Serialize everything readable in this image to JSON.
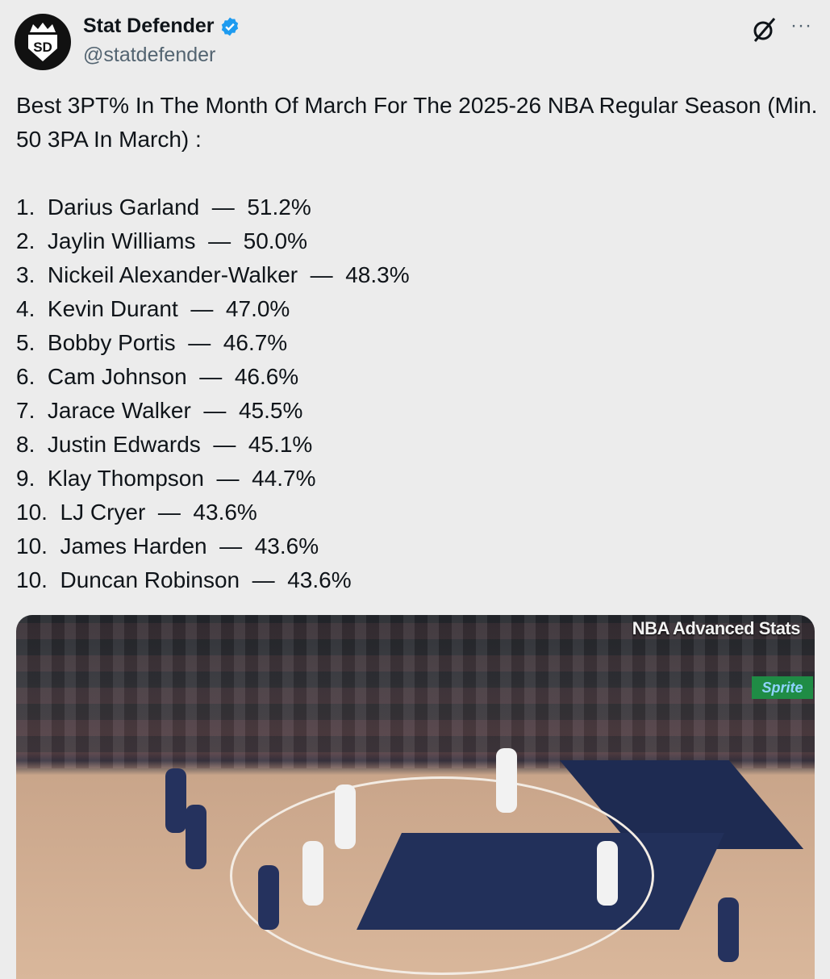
{
  "author": {
    "name": "Stat Defender",
    "handle": "@statdefender",
    "avatar_icon": "sd-crown-logo",
    "avatar_text": "SD",
    "verified": true,
    "verified_color": "#1d9bf0"
  },
  "actions": {
    "grok_icon": "grok-icon",
    "more_icon": "more-icon",
    "more_label": "···"
  },
  "tweet": {
    "headline": "Best 3PT% In The Month Of March For The 2025-26 NBA Regular Season (Min. 50 3PA In March) :",
    "rankings": [
      {
        "rank": "1.",
        "player": "Darius Garland",
        "pct": "51.2%"
      },
      {
        "rank": "2.",
        "player": "Jaylin Williams",
        "pct": "50.0%"
      },
      {
        "rank": "3.",
        "player": "Nickeil Alexander-Walker",
        "pct": "48.3%"
      },
      {
        "rank": "4.",
        "player": "Kevin Durant",
        "pct": "47.0%"
      },
      {
        "rank": "5.",
        "player": "Bobby Portis",
        "pct": "46.7%"
      },
      {
        "rank": "6.",
        "player": "Cam Johnson",
        "pct": "46.6%"
      },
      {
        "rank": "7.",
        "player": "Jarace Walker",
        "pct": "45.5%"
      },
      {
        "rank": "8.",
        "player": "Justin Edwards",
        "pct": "45.1%"
      },
      {
        "rank": "9.",
        "player": "Klay Thompson",
        "pct": "44.7%"
      },
      {
        "rank": "10.",
        "player": "LJ Cryer",
        "pct": "43.6%"
      },
      {
        "rank": "10.",
        "player": "James Harden",
        "pct": "43.6%"
      },
      {
        "rank": "10.",
        "player": "Duncan Robinson",
        "pct": "43.6%"
      }
    ],
    "separator": "—"
  },
  "media": {
    "watermark": "NBA Advanced Stats",
    "sign": "Sprite"
  }
}
